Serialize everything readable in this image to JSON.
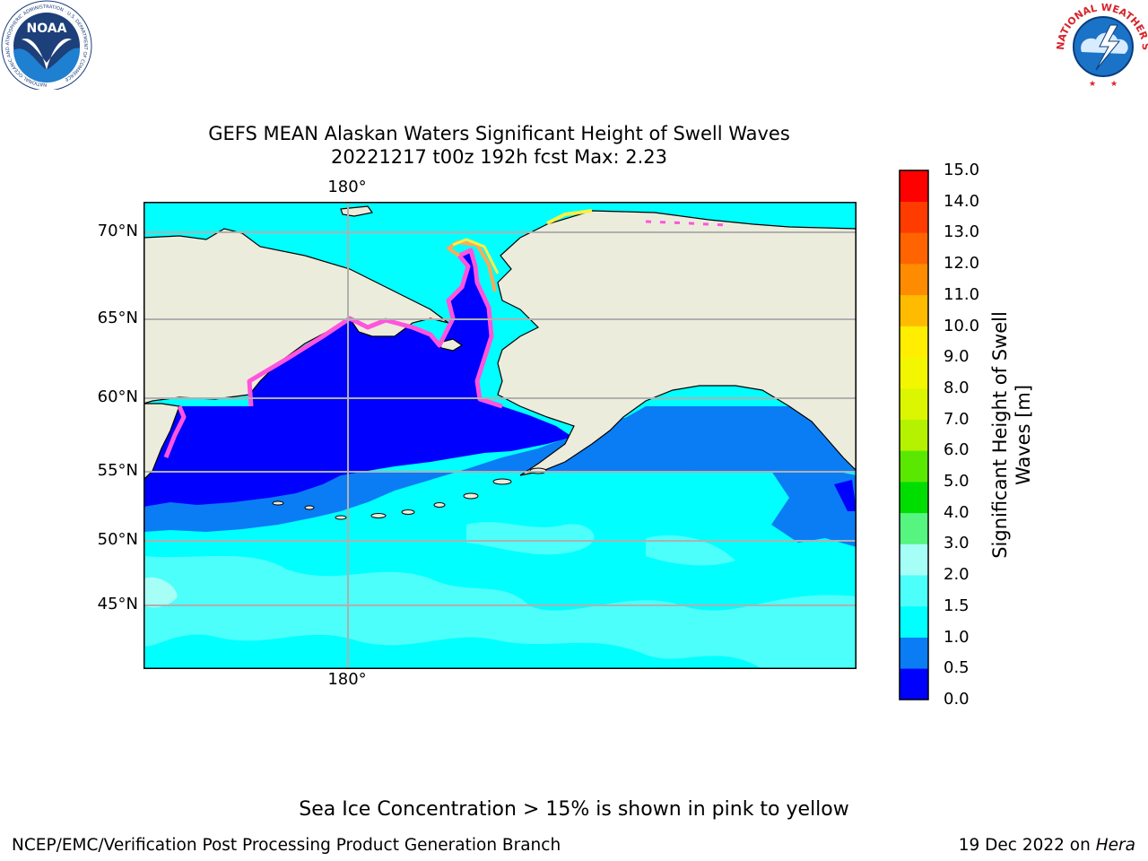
{
  "title_line1": "GEFS MEAN Alaskan Waters Significant Height of Swell Waves",
  "title_line2": "20221217 t00z 192h fcst   Max: 2.23",
  "map": {
    "lat_labels": [
      "70°N",
      "65°N",
      "60°N",
      "55°N",
      "50°N",
      "45°N"
    ],
    "lon_label_top": "180°",
    "lon_label_bottom": "180°",
    "land_color": "#ececdc",
    "ice_colors": [
      "#ff55dd",
      "#ffaa55",
      "#ffee44"
    ]
  },
  "colorbar": {
    "title": "Significant Height of Swell Waves [m]",
    "title_line1": "Significant Height of Swell",
    "title_line2": "Waves [m]",
    "tick_labels": [
      "15.0",
      "14.0",
      "13.0",
      "12.0",
      "11.0",
      "10.0",
      "9.0",
      "8.0",
      "7.0",
      "6.0",
      "5.0",
      "4.0",
      "3.0",
      "2.0",
      "1.5",
      "1.0",
      "0.5",
      "0.0"
    ],
    "bins": [
      {
        "range": "0.0-0.5",
        "color": "#0000ff"
      },
      {
        "range": "0.5-1.0",
        "color": "#0a7df5"
      },
      {
        "range": "1.0-1.5",
        "color": "#00ffff"
      },
      {
        "range": "1.5-2.0",
        "color": "#4dfffa"
      },
      {
        "range": "2.0-3.0",
        "color": "#a6fff7"
      },
      {
        "range": "3.0-4.0",
        "color": "#55f57f"
      },
      {
        "range": "4.0-5.0",
        "color": "#00dd00"
      },
      {
        "range": "5.0-6.0",
        "color": "#5ae800"
      },
      {
        "range": "6.0-7.0",
        "color": "#b4f200"
      },
      {
        "range": "7.0-8.0",
        "color": "#dcf500"
      },
      {
        "range": "8.0-9.0",
        "color": "#f2f700"
      },
      {
        "range": "9.0-10.0",
        "color": "#ffee00"
      },
      {
        "range": "10.0-11.0",
        "color": "#ffbb00"
      },
      {
        "range": "11.0-12.0",
        "color": "#ff8c00"
      },
      {
        "range": "12.0-13.0",
        "color": "#ff6400"
      },
      {
        "range": "13.0-14.0",
        "color": "#ff3c00"
      },
      {
        "range": "14.0-15.0",
        "color": "#ff0000"
      }
    ]
  },
  "note": "Sea Ice Concentration > 15% is shown in pink to yellow",
  "footer_left": "NCEP/EMC/Verification Post Processing Product Generation Branch",
  "footer_date": "19 Dec 2022 on",
  "footer_host": "Hera",
  "logos": {
    "noaa_text": "NOAA",
    "noaa_ring_text": "NATIONAL OCEANIC AND ATMOSPHERIC ADMINISTRATION · U.S. DEPARTMENT OF COMMERCE",
    "nws_ring_text": "NATIONAL WEATHER SERVICE"
  }
}
